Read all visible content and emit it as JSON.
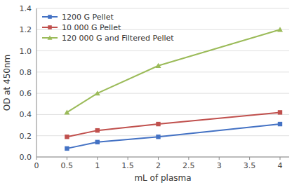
{
  "chart_data": {
    "type": "line",
    "xlabel": "mL of plasma",
    "ylabel": "OD at 450nm",
    "x": [
      0.5,
      1.0,
      2.0,
      4.0
    ],
    "series": [
      {
        "name": "1200 G Pellet",
        "color": "#4472C4",
        "marker": "square",
        "values": [
          0.08,
          0.14,
          0.19,
          0.31
        ]
      },
      {
        "name": "10 000 G Pellet",
        "color": "#C0504D",
        "marker": "square",
        "values": [
          0.19,
          0.25,
          0.31,
          0.42
        ]
      },
      {
        "name": "120 000 G and Filtered Pellet",
        "color": "#9BBB59",
        "marker": "triangle",
        "values": [
          0.42,
          0.6,
          0.86,
          1.2
        ]
      }
    ],
    "xlim": [
      0,
      4.15
    ],
    "ylim": [
      0,
      1.4
    ],
    "xticks": [
      0,
      0.5,
      1.0,
      1.5,
      2.0,
      2.5,
      3.0,
      3.5,
      4.0
    ],
    "yticks": [
      {
        "value": 0,
        "label": "0.0"
      },
      0.2,
      0.4,
      0.6,
      0.8,
      {
        "value": 1.0,
        "label": "1.0"
      },
      1.2,
      1.4
    ],
    "grid": true,
    "legend": "upper left"
  }
}
